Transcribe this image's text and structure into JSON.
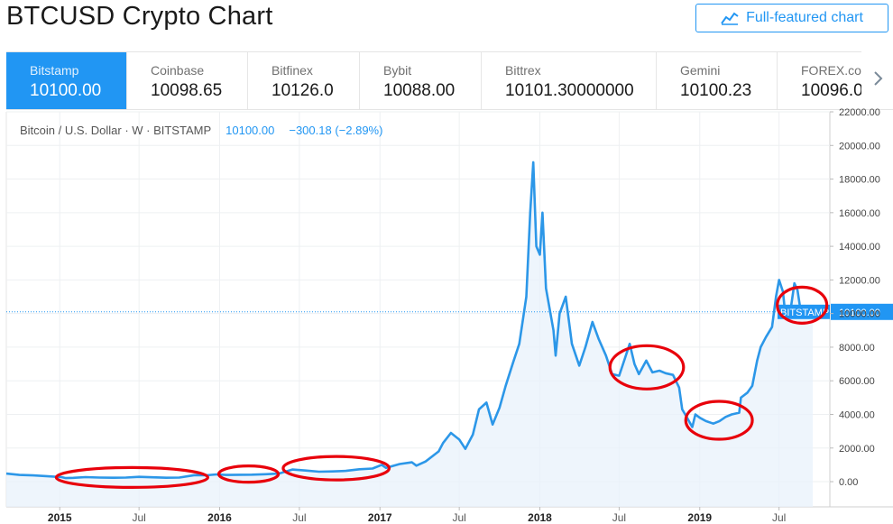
{
  "header": {
    "title": "BTCUSD Crypto Chart",
    "full_featured_label": "Full-featured chart",
    "full_featured_icon": "chart-line-icon"
  },
  "tabs": [
    {
      "name": "Bitstamp",
      "value": "10100.00",
      "active": true
    },
    {
      "name": "Coinbase",
      "value": "10098.65"
    },
    {
      "name": "Bitfinex",
      "value": "10126.0"
    },
    {
      "name": "Bybit",
      "value": "10088.00"
    },
    {
      "name": "Bittrex",
      "value": "10101.30000000"
    },
    {
      "name": "Gemini",
      "value": "10100.23"
    },
    {
      "name": "FOREX.com",
      "value": "10096.0"
    }
  ],
  "next_icon": "chevron-right-icon",
  "legend": {
    "symbol": "Bitcoin / U.S. Dollar · W · BITSTAMP",
    "last": "10100.00",
    "change": "−300.18 (−2.89%)"
  },
  "colors": {
    "accent": "#2196f3",
    "line": "#2c97e8",
    "area": "#e8f2fb",
    "annotation": "#e8000b"
  },
  "chart_data": {
    "type": "line",
    "title": "",
    "xlabel": "",
    "ylabel": "",
    "ylim": [
      -1500,
      22000
    ],
    "xlim": [
      "2014-09-01",
      "2019-10-25"
    ],
    "grid": true,
    "x_tick_labels": [
      "2015",
      "Jul",
      "2016",
      "Jul",
      "2017",
      "Jul",
      "2018",
      "Jul",
      "2019",
      "Jul"
    ],
    "y_tick_labels": [
      "0.00",
      "2000.00",
      "4000.00",
      "6000.00",
      "8000.00",
      "10000.00",
      "12000.00",
      "14000.00",
      "16000.00",
      "18000.00",
      "20000.00",
      "22000.00"
    ],
    "last_price_label": "10100.00",
    "last_price": 10100,
    "series_tag": "BITSTAMP",
    "series": [
      {
        "name": "",
        "points": [
          [
            "2014-09-01",
            480
          ],
          [
            "2014-10-01",
            400
          ],
          [
            "2014-11-01",
            370
          ],
          [
            "2014-12-01",
            330
          ],
          [
            "2015-01-05",
            270
          ],
          [
            "2015-01-15",
            210
          ],
          [
            "2015-02-01",
            230
          ],
          [
            "2015-03-01",
            270
          ],
          [
            "2015-04-01",
            245
          ],
          [
            "2015-05-01",
            235
          ],
          [
            "2015-06-01",
            245
          ],
          [
            "2015-07-01",
            285
          ],
          [
            "2015-08-01",
            260
          ],
          [
            "2015-09-01",
            235
          ],
          [
            "2015-10-01",
            245
          ],
          [
            "2015-11-05",
            390
          ],
          [
            "2015-12-01",
            380
          ],
          [
            "2015-12-25",
            430
          ],
          [
            "2016-01-15",
            400
          ],
          [
            "2016-02-15",
            410
          ],
          [
            "2016-03-15",
            415
          ],
          [
            "2016-04-15",
            440
          ],
          [
            "2016-05-15",
            480
          ],
          [
            "2016-06-15",
            720
          ],
          [
            "2016-07-15",
            660
          ],
          [
            "2016-08-15",
            590
          ],
          [
            "2016-09-15",
            610
          ],
          [
            "2016-10-15",
            640
          ],
          [
            "2016-11-15",
            740
          ],
          [
            "2016-12-15",
            780
          ],
          [
            "2017-01-05",
            1000
          ],
          [
            "2017-01-15",
            820
          ],
          [
            "2017-02-15",
            1050
          ],
          [
            "2017-03-15",
            1150
          ],
          [
            "2017-03-25",
            950
          ],
          [
            "2017-04-15",
            1200
          ],
          [
            "2017-05-15",
            1800
          ],
          [
            "2017-05-25",
            2300
          ],
          [
            "2017-06-12",
            2900
          ],
          [
            "2017-07-01",
            2500
          ],
          [
            "2017-07-15",
            1950
          ],
          [
            "2017-08-01",
            2800
          ],
          [
            "2017-08-15",
            4300
          ],
          [
            "2017-09-01",
            4700
          ],
          [
            "2017-09-15",
            3400
          ],
          [
            "2017-10-01",
            4400
          ],
          [
            "2017-10-15",
            5700
          ],
          [
            "2017-11-01",
            7100
          ],
          [
            "2017-11-15",
            8200
          ],
          [
            "2017-12-01",
            11000
          ],
          [
            "2017-12-10",
            16000
          ],
          [
            "2017-12-17",
            19000
          ],
          [
            "2017-12-24",
            14000
          ],
          [
            "2018-01-01",
            13500
          ],
          [
            "2018-01-07",
            16000
          ],
          [
            "2018-01-15",
            11500
          ],
          [
            "2018-02-01",
            9000
          ],
          [
            "2018-02-06",
            7500
          ],
          [
            "2018-02-15",
            10000
          ],
          [
            "2018-03-01",
            11000
          ],
          [
            "2018-03-15",
            8200
          ],
          [
            "2018-04-01",
            6900
          ],
          [
            "2018-04-15",
            8000
          ],
          [
            "2018-05-01",
            9500
          ],
          [
            "2018-05-15",
            8500
          ],
          [
            "2018-06-01",
            7500
          ],
          [
            "2018-06-15",
            6400
          ],
          [
            "2018-07-01",
            6300
          ],
          [
            "2018-07-15",
            7400
          ],
          [
            "2018-07-25",
            8200
          ],
          [
            "2018-08-05",
            7000
          ],
          [
            "2018-08-15",
            6400
          ],
          [
            "2018-09-01",
            7200
          ],
          [
            "2018-09-15",
            6500
          ],
          [
            "2018-10-01",
            6600
          ],
          [
            "2018-10-15",
            6450
          ],
          [
            "2018-11-01",
            6350
          ],
          [
            "2018-11-15",
            5600
          ],
          [
            "2018-11-22",
            4300
          ],
          [
            "2018-12-01",
            3900
          ],
          [
            "2018-12-15",
            3250
          ],
          [
            "2018-12-22",
            4000
          ],
          [
            "2019-01-01",
            3800
          ],
          [
            "2019-01-15",
            3600
          ],
          [
            "2019-02-01",
            3450
          ],
          [
            "2019-02-15",
            3600
          ],
          [
            "2019-03-01",
            3850
          ],
          [
            "2019-03-15",
            4000
          ],
          [
            "2019-04-01",
            4100
          ],
          [
            "2019-04-05",
            5000
          ],
          [
            "2019-04-20",
            5300
          ],
          [
            "2019-05-01",
            5700
          ],
          [
            "2019-05-12",
            7200
          ],
          [
            "2019-05-20",
            8000
          ],
          [
            "2019-06-01",
            8600
          ],
          [
            "2019-06-15",
            9200
          ],
          [
            "2019-06-24",
            11000
          ],
          [
            "2019-07-01",
            12000
          ],
          [
            "2019-07-10",
            11300
          ],
          [
            "2019-07-15",
            10000
          ],
          [
            "2019-07-25",
            9800
          ],
          [
            "2019-08-05",
            11800
          ],
          [
            "2019-08-12",
            11400
          ],
          [
            "2019-08-19",
            10200
          ],
          [
            "2019-09-02",
            10400
          ],
          [
            "2019-09-09",
            10400
          ],
          [
            "2019-09-16",
            10100
          ]
        ]
      }
    ],
    "annotations": [
      {
        "shape": "ellipse",
        "x_from": "2014-12-24",
        "x_to": "2015-12-05",
        "y_center": 250
      },
      {
        "shape": "ellipse",
        "x_from": "2015-12-30",
        "x_to": "2016-05-14",
        "y_center": 450
      },
      {
        "shape": "ellipse",
        "x_from": "2016-05-25",
        "x_to": "2017-01-22",
        "y_center": 800
      },
      {
        "shape": "ellipse",
        "x_from": "2018-06-10",
        "x_to": "2018-11-25",
        "y_center": 6800
      },
      {
        "shape": "ellipse",
        "x_from": "2018-11-30",
        "x_to": "2019-05-01",
        "y_center": 3650
      },
      {
        "shape": "ellipse",
        "x_from": "2019-06-27",
        "x_to": "2019-10-18",
        "y_center": 10500
      }
    ]
  }
}
